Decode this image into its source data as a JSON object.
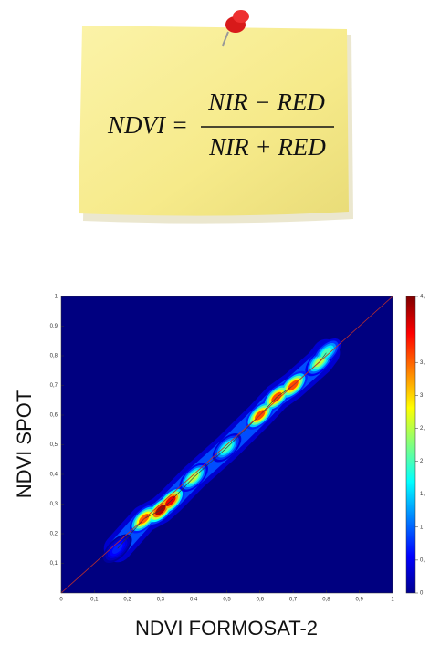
{
  "note": {
    "lhs": "NDVI =",
    "numerator": "NIR − RED",
    "denominator": "NIR + RED"
  },
  "chart_data": {
    "type": "density",
    "x_label": "NDVI FORMOSAT-2",
    "y_label": "NDVI SPOT",
    "x": [
      0.17,
      0.25,
      0.3,
      0.33,
      0.4,
      0.5,
      0.6,
      0.65,
      0.7,
      0.78,
      0.8
    ],
    "y": [
      0.15,
      0.25,
      0.28,
      0.31,
      0.39,
      0.49,
      0.6,
      0.66,
      0.7,
      0.78,
      0.81
    ],
    "values": [
      0.7,
      3.5,
      4.3,
      4.0,
      2.5,
      2.0,
      3.6,
      3.6,
      3.6,
      2.5,
      2.0
    ],
    "xlim": [
      0,
      1
    ],
    "ylim": [
      0,
      1
    ],
    "zlim": [
      0,
      4.5
    ],
    "xticks": [
      0,
      {
        "value": 0.1,
        "label": "0,1"
      },
      {
        "value": 0.2,
        "label": "0,2"
      },
      {
        "value": 0.3,
        "label": "0,3"
      },
      {
        "value": 0.4,
        "label": "0,4"
      },
      {
        "value": 0.5,
        "label": "0,5"
      },
      {
        "value": 0.6,
        "label": "0,6"
      },
      {
        "value": 0.7,
        "label": "0,7"
      },
      {
        "value": 0.8,
        "label": "0,8"
      },
      {
        "value": 0.9,
        "label": "0,9"
      },
      1
    ],
    "yticks": [
      {
        "value": 0.1,
        "label": "0,1"
      },
      {
        "value": 0.2,
        "label": "0,2"
      },
      {
        "value": 0.3,
        "label": "0,3"
      },
      {
        "value": 0.4,
        "label": "0,4"
      },
      {
        "value": 0.5,
        "label": "0,5"
      },
      {
        "value": 0.6,
        "label": "0,6"
      },
      {
        "value": 0.7,
        "label": "0,7"
      },
      {
        "value": 0.8,
        "label": "0,8"
      },
      {
        "value": 0.9,
        "label": "0,9"
      },
      1
    ],
    "zticks": [
      0,
      {
        "value": 0.5,
        "label": "0,"
      },
      1,
      {
        "value": 1.5,
        "label": "1,"
      },
      2,
      {
        "value": 2.5,
        "label": "2,"
      },
      3,
      {
        "value": 3.5,
        "label": "3,"
      },
      {
        "value": 4.5,
        "label": "4,"
      }
    ]
  }
}
